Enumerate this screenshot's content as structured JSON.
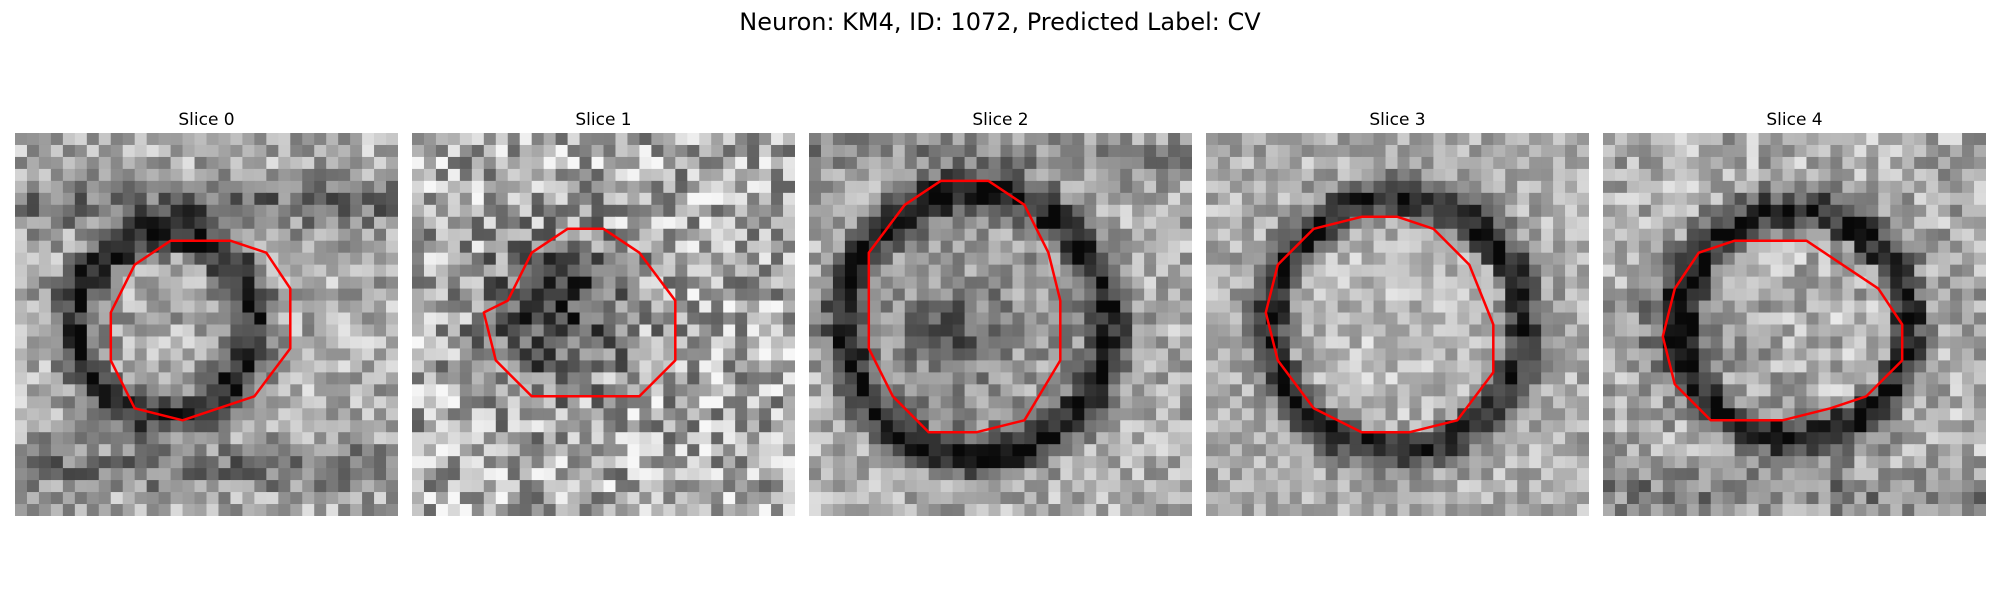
{
  "figure": {
    "title": "Neuron: KM4, ID: 1072, Predicted Label: CV"
  },
  "contour_color": "#ff0000",
  "colormap": "grayscale",
  "panels": [
    {
      "title": "Slice 0",
      "content": "grayscale microscopy patch with red contour outlining a cell"
    },
    {
      "title": "Slice 1",
      "content": "grayscale microscopy patch with red contour outlining a cell"
    },
    {
      "title": "Slice 2",
      "content": "grayscale microscopy patch with red contour outlining a cell"
    },
    {
      "title": "Slice 3",
      "content": "grayscale microscopy patch with red contour outlining a cell"
    },
    {
      "title": "Slice 4",
      "content": "grayscale microscopy patch with red contour outlining a cell"
    }
  ]
}
